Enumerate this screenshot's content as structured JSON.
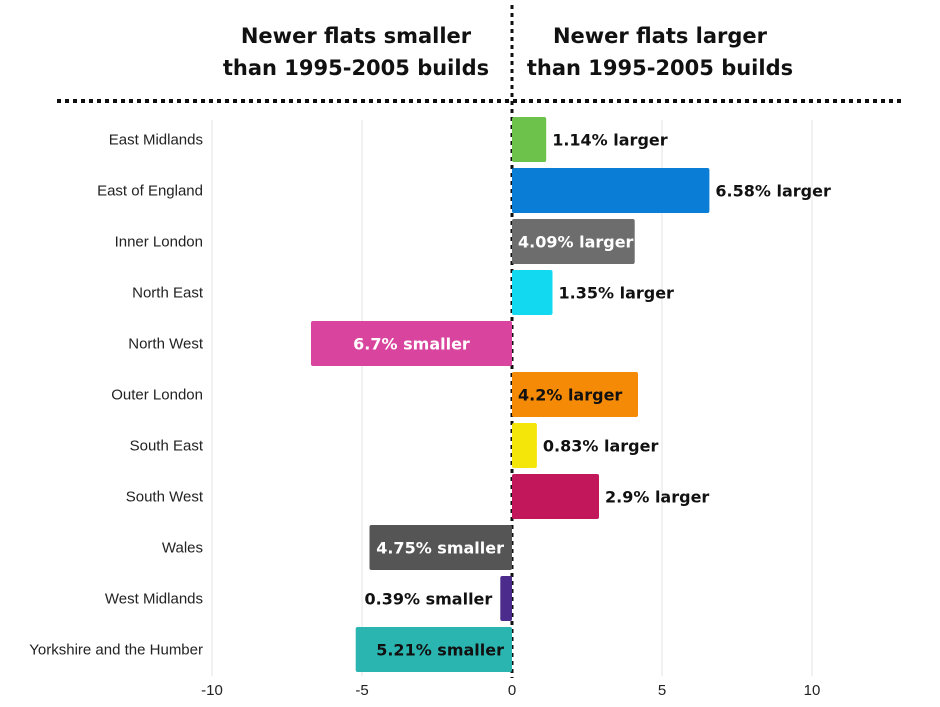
{
  "chart_data": {
    "type": "bar",
    "orientation": "horizontal",
    "header_left": [
      "Newer flats smaller",
      "than 1995-2005 builds"
    ],
    "header_right": [
      "Newer flats larger",
      "than 1995-2005 builds"
    ],
    "xlim": [
      -10,
      10
    ],
    "xticks": [
      -10,
      -5,
      0,
      5,
      10
    ],
    "grid": true,
    "categories": [
      "East Midlands",
      "East of England",
      "Inner London",
      "North East",
      "North West",
      "Outer London",
      "South East",
      "South West",
      "Wales",
      "West Midlands",
      "Yorkshire and the Humber"
    ],
    "values": [
      1.14,
      6.58,
      4.09,
      1.35,
      -6.7,
      4.2,
      0.83,
      2.9,
      -4.75,
      -0.39,
      -5.21
    ],
    "labels": [
      "1.14% larger",
      "6.58% larger",
      "4.09% larger",
      "1.35% larger",
      "6.7% smaller",
      "4.2% larger",
      "0.83% larger",
      "2.9% larger",
      "4.75% smaller",
      "0.39% smaller",
      "5.21% smaller"
    ],
    "colors": [
      "#6cc24a",
      "#0a7ed6",
      "#6d6d6d",
      "#12d9ef",
      "#d9459e",
      "#f58a07",
      "#f5e60a",
      "#c2185b",
      "#555555",
      "#4b2c8c",
      "#2bb5b0"
    ],
    "label_inside": [
      false,
      false,
      true,
      false,
      true,
      true,
      false,
      false,
      true,
      false,
      true
    ],
    "label_color": [
      "#111111",
      "#111111",
      "#ffffff",
      "#111111",
      "#ffffff",
      "#111111",
      "#111111",
      "#111111",
      "#ffffff",
      "#111111",
      "#111111"
    ]
  }
}
